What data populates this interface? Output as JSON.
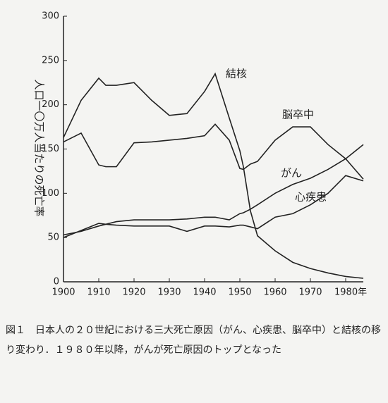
{
  "chart_data": {
    "type": "line",
    "y_label": "人口一〇万人当たりの死亡率",
    "x": [
      1900,
      1905,
      1910,
      1912,
      1915,
      1920,
      1925,
      1930,
      1935,
      1940,
      1943,
      1947,
      1950,
      1951,
      1953,
      1955,
      1960,
      1965,
      1970,
      1975,
      1980,
      1985
    ],
    "series": [
      {
        "name": "結核",
        "color": "#222",
        "values": [
          163,
          205,
          230,
          222,
          222,
          225,
          205,
          188,
          190,
          215,
          235,
          185,
          148,
          130,
          80,
          52,
          35,
          22,
          15,
          10,
          6,
          4
        ]
      },
      {
        "name": "脳卒中",
        "color": "#222",
        "values": [
          158,
          168,
          132,
          130,
          130,
          157,
          158,
          160,
          162,
          165,
          178,
          160,
          128,
          127,
          133,
          136,
          160,
          175,
          175,
          155,
          139,
          116
        ]
      },
      {
        "name": "がん",
        "color": "#222",
        "values": [
          53,
          57,
          63,
          65,
          68,
          70,
          70,
          70,
          71,
          73,
          73,
          70,
          77,
          78,
          82,
          87,
          100,
          110,
          117,
          127,
          139,
          155
        ]
      },
      {
        "name": "心疾患",
        "color": "#222",
        "values": [
          50,
          58,
          66,
          65,
          64,
          63,
          63,
          63,
          57,
          63,
          63,
          62,
          64,
          64,
          62,
          60,
          73,
          77,
          87,
          100,
          120,
          114
        ]
      }
    ],
    "xlim": [
      1900,
      1985
    ],
    "xticks": [
      1900,
      1910,
      1920,
      1930,
      1940,
      1950,
      1960,
      1970,
      {
        "value": 1980,
        "label": "1980年"
      }
    ],
    "ylim": [
      0,
      300
    ],
    "yticks": [
      0,
      50,
      100,
      150,
      200,
      250,
      300
    ],
    "grid": false
  },
  "caption": {
    "figure_label": "図１",
    "text": "日本人の２０世紀における三大死亡原因（がん、心疾患、脳卒中）と結核の移り変わり．１９８０年以降，がんが死亡原因のトップとなった"
  }
}
